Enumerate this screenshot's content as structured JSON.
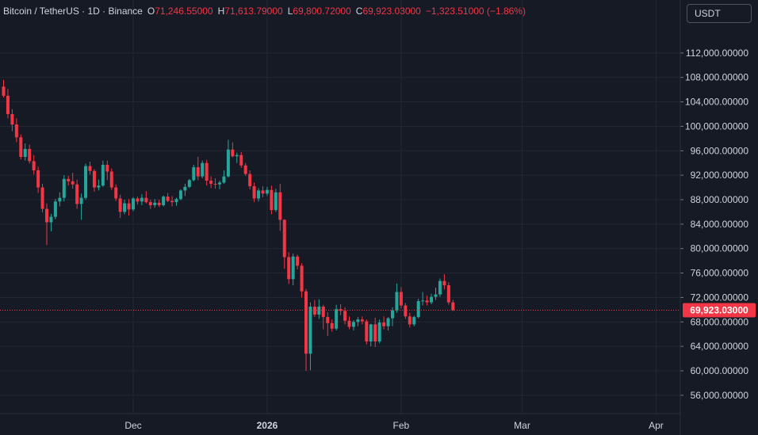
{
  "header": {
    "symbol": "Bitcoin / TetherUS · 1D · Binance",
    "open_key": "O",
    "open": "71,246.55000",
    "high_key": "H",
    "high": "71,613.79000",
    "low_key": "L",
    "low": "69,800.72000",
    "close_key": "C",
    "close": "69,923.03000",
    "change": "−1,323.51000 (−1.86%)"
  },
  "currency_button": "USDT",
  "colors": {
    "up": "#26a69a",
    "down": "#f23645",
    "background": "#161a25",
    "grid": "#232733",
    "axis_text": "#d1d4dc"
  },
  "chart_data": {
    "type": "candlestick",
    "y_axis_labels": [
      "112,000.00000",
      "108,000.00000",
      "104,000.00000",
      "100,000.00000",
      "96,000.00000",
      "92,000.00000",
      "88,000.00000",
      "84,000.00000",
      "80,000.00000",
      "76,000.00000",
      "72,000.00000",
      "68,000.00000",
      "64,000.00000",
      "60,000.00000",
      "56,000.00000"
    ],
    "y_axis_values": [
      112000,
      108000,
      104000,
      100000,
      96000,
      92000,
      88000,
      84000,
      80000,
      76000,
      72000,
      68000,
      64000,
      60000,
      56000
    ],
    "ylim": [
      53000,
      118000
    ],
    "x_axis_labels": [
      {
        "label": "Dec",
        "day": 30
      },
      {
        "label": "2026",
        "day": 61
      },
      {
        "label": "Feb",
        "day": 92
      },
      {
        "label": "Mar",
        "day": 120
      },
      {
        "label": "Apr",
        "day": 151
      }
    ],
    "x_range_days": [
      0,
      157
    ],
    "first_day": "2025-11-01",
    "last_price": 69923.03,
    "last_price_label": "69,923.03000",
    "candles": [
      [
        106500,
        107600,
        104700,
        105000
      ],
      [
        105000,
        106100,
        101300,
        102000
      ],
      [
        102000,
        102800,
        99200,
        100300
      ],
      [
        100300,
        101300,
        97400,
        98200
      ],
      [
        98200,
        98700,
        94600,
        95000
      ],
      [
        95000,
        97200,
        94400,
        96300
      ],
      [
        96300,
        97000,
        93900,
        94300
      ],
      [
        94300,
        95300,
        92100,
        92800
      ],
      [
        92800,
        93400,
        89100,
        90000
      ],
      [
        90000,
        90600,
        85900,
        86500
      ],
      [
        86500,
        87400,
        80600,
        84300
      ],
      [
        84300,
        85700,
        82800,
        85200
      ],
      [
        85200,
        88100,
        84800,
        87700
      ],
      [
        87700,
        89200,
        86900,
        88300
      ],
      [
        88300,
        92000,
        87700,
        91400
      ],
      [
        91400,
        91900,
        90300,
        91000
      ],
      [
        91000,
        92400,
        89800,
        90500
      ],
      [
        90500,
        91300,
        86500,
        87300
      ],
      [
        87300,
        89000,
        84700,
        88300
      ],
      [
        88300,
        93900,
        88000,
        93500
      ],
      [
        93500,
        94200,
        92100,
        92700
      ],
      [
        92700,
        93000,
        89300,
        90000
      ],
      [
        90000,
        91300,
        89500,
        90300
      ],
      [
        90300,
        94400,
        90100,
        93700
      ],
      [
        93700,
        94400,
        91200,
        92600
      ],
      [
        92600,
        93100,
        89600,
        90000
      ],
      [
        90000,
        90500,
        87800,
        88200
      ],
      [
        88200,
        88800,
        85000,
        86000
      ],
      [
        86000,
        88000,
        85600,
        87400
      ],
      [
        87400,
        88100,
        85400,
        86400
      ],
      [
        86400,
        88400,
        86100,
        88200
      ],
      [
        88200,
        88500,
        87200,
        87700
      ],
      [
        87700,
        88900,
        87100,
        88300
      ],
      [
        88300,
        89400,
        87400,
        87600
      ],
      [
        87600,
        88000,
        86500,
        87100
      ],
      [
        87100,
        88100,
        86700,
        87500
      ],
      [
        87500,
        88000,
        86800,
        87100
      ],
      [
        87100,
        88700,
        86900,
        88500
      ],
      [
        88500,
        89100,
        87600,
        87800
      ],
      [
        87800,
        88600,
        86900,
        87600
      ],
      [
        87600,
        88300,
        87000,
        88100
      ],
      [
        88100,
        89700,
        87900,
        89500
      ],
      [
        89500,
        90600,
        88600,
        90100
      ],
      [
        90100,
        91400,
        89900,
        91200
      ],
      [
        91200,
        93700,
        91000,
        93300
      ],
      [
        93300,
        95000,
        91200,
        91800
      ],
      [
        91800,
        94400,
        91500,
        94000
      ],
      [
        94000,
        94500,
        90300,
        91100
      ],
      [
        91100,
        91800,
        89900,
        90600
      ],
      [
        90600,
        91500,
        89800,
        90500
      ],
      [
        90500,
        91100,
        89700,
        90800
      ],
      [
        90800,
        92800,
        90600,
        91800
      ],
      [
        91800,
        97800,
        91600,
        96200
      ],
      [
        96200,
        97400,
        94900,
        95100
      ],
      [
        95100,
        95700,
        94000,
        95300
      ],
      [
        95300,
        95800,
        93200,
        93600
      ],
      [
        93600,
        94000,
        91900,
        92200
      ],
      [
        92200,
        92800,
        89700,
        90200
      ],
      [
        90200,
        90800,
        87600,
        88200
      ],
      [
        88200,
        89900,
        87700,
        89500
      ],
      [
        89500,
        90200,
        88400,
        89000
      ],
      [
        89000,
        90100,
        88600,
        89600
      ],
      [
        89600,
        90300,
        85600,
        86300
      ],
      [
        86300,
        89800,
        86000,
        89200
      ],
      [
        89200,
        90600,
        82900,
        84700
      ],
      [
        84700,
        84800,
        76700,
        78600
      ],
      [
        78600,
        79400,
        74200,
        75000
      ],
      [
        75000,
        79200,
        74000,
        78700
      ],
      [
        78700,
        79000,
        76600,
        77200
      ],
      [
        77200,
        77600,
        72000,
        73000
      ],
      [
        73000,
        73400,
        60000,
        62800
      ],
      [
        62800,
        71200,
        60100,
        70500
      ],
      [
        70500,
        71600,
        68800,
        69200
      ],
      [
        69200,
        71700,
        68500,
        70500
      ],
      [
        70500,
        70800,
        66800,
        68800
      ],
      [
        68800,
        69600,
        65700,
        67800
      ],
      [
        67800,
        68400,
        66400,
        66900
      ],
      [
        66900,
        70800,
        66600,
        70100
      ],
      [
        70100,
        70900,
        69100,
        69800
      ],
      [
        69800,
        70400,
        67600,
        68200
      ],
      [
        68200,
        68900,
        66800,
        67200
      ],
      [
        67200,
        68300,
        66600,
        68000
      ],
      [
        68000,
        68800,
        67300,
        68400
      ],
      [
        68400,
        68900,
        67600,
        68100
      ],
      [
        68100,
        68400,
        64300,
        64800
      ],
      [
        64800,
        67700,
        64000,
        67600
      ],
      [
        67600,
        68700,
        63900,
        64800
      ],
      [
        64800,
        68400,
        64500,
        67900
      ],
      [
        67900,
        68900,
        66800,
        67300
      ],
      [
        67300,
        68800,
        66600,
        68600
      ],
      [
        68600,
        70400,
        67300,
        69900
      ],
      [
        69900,
        74300,
        69500,
        72900
      ],
      [
        72900,
        73700,
        70200,
        70700
      ],
      [
        70700,
        71100,
        68500,
        68900
      ],
      [
        68900,
        69500,
        67100,
        67600
      ],
      [
        67600,
        69000,
        67300,
        68800
      ],
      [
        68800,
        71800,
        68600,
        71400
      ],
      [
        71400,
        72900,
        70700,
        71500
      ],
      [
        71500,
        72300,
        70700,
        71200
      ],
      [
        71200,
        72600,
        70900,
        72100
      ],
      [
        72100,
        73600,
        71600,
        72500
      ],
      [
        72500,
        75100,
        72100,
        74700
      ],
      [
        74700,
        75800,
        73300,
        74000
      ],
      [
        74000,
        74500,
        70800,
        71200
      ],
      [
        71200,
        71600,
        69800,
        69923
      ]
    ]
  }
}
